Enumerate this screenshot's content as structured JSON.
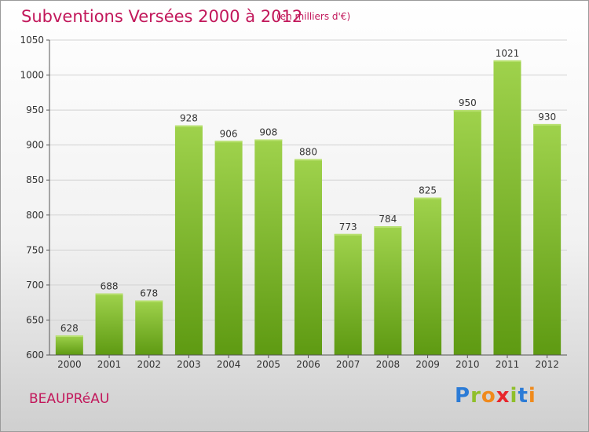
{
  "header": {
    "title": "Subventions Versées 2000 à 2012",
    "unit": "(en milliers d'€)"
  },
  "footer": {
    "place": "BEAUPRéAU",
    "logo_letters": [
      "P",
      "r",
      "o",
      "x",
      "i",
      "t",
      "i"
    ],
    "logo_colors": [
      "#2b7bd6",
      "#8fbf2a",
      "#f08a1c",
      "#e8262c",
      "#8fbf2a",
      "#2b7bd6",
      "#f08a1c"
    ]
  },
  "chart_data": {
    "type": "bar",
    "title": "Subventions Versées 2000 à 2012",
    "subtitle": "(en milliers d'€)",
    "xlabel": "",
    "ylabel": "",
    "categories": [
      "2000",
      "2001",
      "2002",
      "2003",
      "2004",
      "2005",
      "2006",
      "2007",
      "2008",
      "2009",
      "2010",
      "2011",
      "2012"
    ],
    "values": [
      628,
      688,
      678,
      928,
      906,
      908,
      880,
      773,
      784,
      825,
      950,
      1021,
      930
    ],
    "ylim": [
      600,
      1050
    ],
    "yticks": [
      600,
      650,
      700,
      750,
      800,
      850,
      900,
      950,
      1000,
      1050
    ],
    "grid": true,
    "legend": "none",
    "bar_color_top": "#9fd24c",
    "bar_color_bottom": "#5e9a12"
  }
}
